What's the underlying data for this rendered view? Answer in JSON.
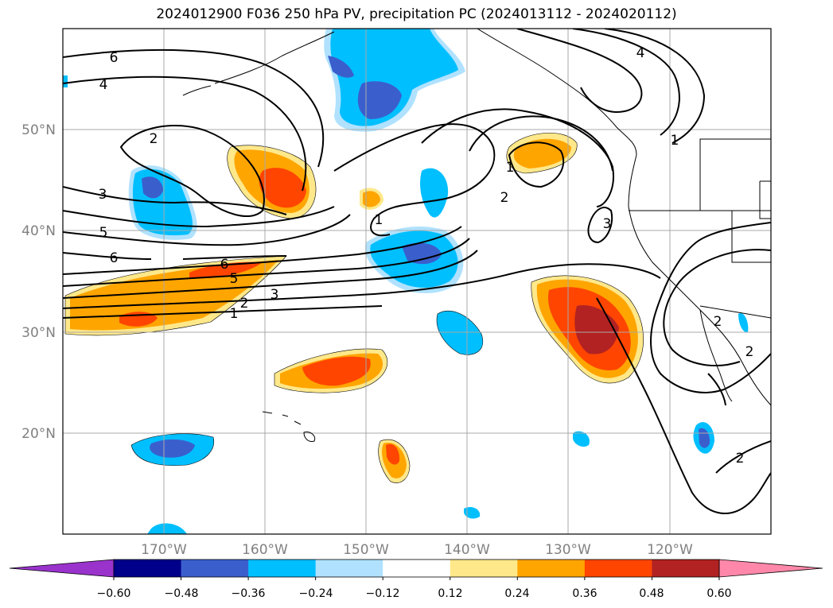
{
  "title": "2024012900 F036 250 hPa PV, precipitation PC (2024013112 - 2024020112)",
  "lat_labels": [
    "50°N",
    "40°N",
    "30°N",
    "20°N"
  ],
  "lon_labels": [
    "170°W",
    "160°W",
    "150°W",
    "140°W",
    "130°W",
    "120°W"
  ],
  "colorbar": {
    "ticks": [
      "−0.60",
      "−0.48",
      "−0.36",
      "−0.24",
      "−0.12",
      "0.12",
      "0.24",
      "0.36",
      "0.48",
      "0.60"
    ],
    "colors": [
      "#9933cc",
      "#00008b",
      "#3a5fcd",
      "#00bfff",
      "#b0e2ff",
      "#ffffff",
      "#ffe88a",
      "#ffa500",
      "#ff4500",
      "#b22222",
      "#ff88aa"
    ]
  },
  "contour_labels": [
    "6",
    "4",
    "2",
    "3",
    "5",
    "6",
    "6",
    "5",
    "3",
    "2",
    "1",
    "1",
    "2",
    "1",
    "4",
    "1",
    "3",
    "2",
    "2",
    "2"
  ]
}
